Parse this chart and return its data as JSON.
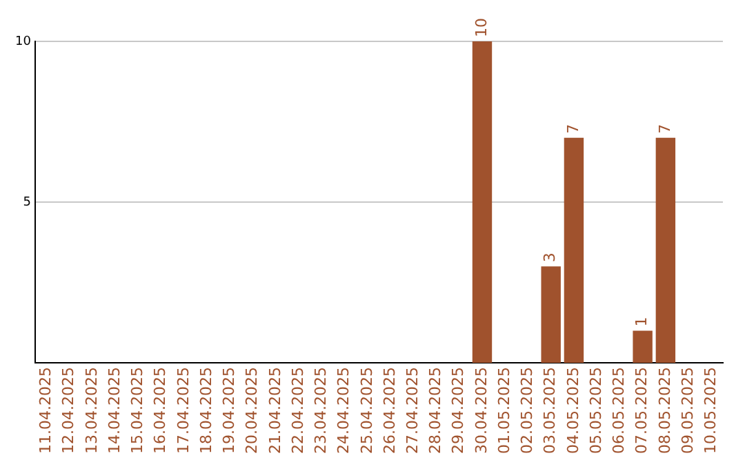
{
  "chart_data": {
    "type": "bar",
    "categories": [
      "11.04.2025",
      "12.04.2025",
      "13.04.2025",
      "14.04.2025",
      "15.04.2025",
      "16.04.2025",
      "17.04.2025",
      "18.04.2025",
      "19.04.2025",
      "20.04.2025",
      "21.04.2025",
      "22.04.2025",
      "23.04.2025",
      "24.04.2025",
      "25.04.2025",
      "26.04.2025",
      "27.04.2025",
      "28.04.2025",
      "29.04.2025",
      "30.04.2025",
      "01.05.2025",
      "02.05.2025",
      "03.05.2025",
      "04.05.2025",
      "05.05.2025",
      "06.05.2025",
      "07.05.2025",
      "08.05.2025",
      "09.05.2025",
      "10.05.2025"
    ],
    "values": [
      0,
      0,
      0,
      0,
      0,
      0,
      0,
      0,
      0,
      0,
      0,
      0,
      0,
      0,
      0,
      0,
      0,
      0,
      0,
      10,
      0,
      0,
      3,
      7,
      0,
      0,
      1,
      7,
      0,
      0
    ],
    "value_labels": [
      null,
      null,
      null,
      null,
      null,
      null,
      null,
      null,
      null,
      null,
      null,
      null,
      null,
      null,
      null,
      null,
      null,
      null,
      null,
      "10",
      null,
      null,
      "3",
      "7",
      null,
      null,
      "1",
      "7",
      null,
      null
    ],
    "color": "#a0522d",
    "ylim": [
      0,
      10
    ],
    "yticks": [
      5,
      10
    ],
    "grid": "y",
    "legend": false
  }
}
